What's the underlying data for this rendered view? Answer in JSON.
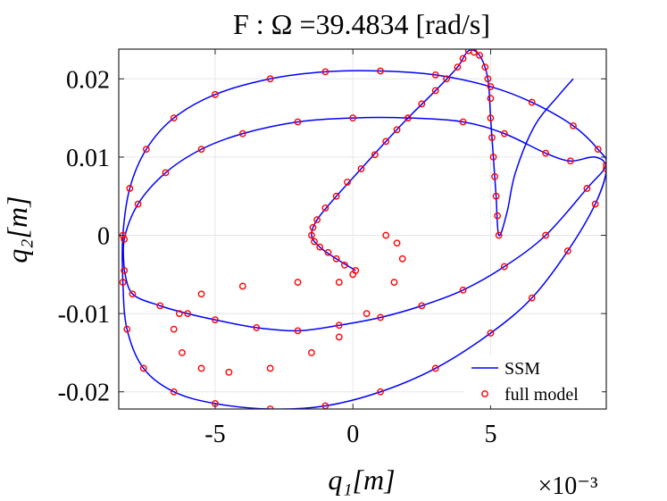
{
  "chart_data": {
    "type": "line",
    "title": "F : Ω =39.4834 [rad/s]",
    "xlabel": "q₁[m]",
    "ylabel": "q₂[m]",
    "x_exponent_label": "×10⁻³",
    "xlim": [
      -8.5,
      9.2
    ],
    "ylim": [
      -0.0222,
      0.0238
    ],
    "x_ticks": [
      -5,
      0,
      5
    ],
    "x_tick_labels": [
      "-5",
      "0",
      "5"
    ],
    "y_ticks": [
      -0.02,
      -0.01,
      0,
      0.01,
      0.02
    ],
    "y_tick_labels": [
      "-0.02",
      "-0.01",
      "0",
      "0.01",
      "0.02"
    ],
    "grid": true,
    "legend_position": "bottom-right",
    "series": [
      {
        "name": "SSM",
        "style": "solid-line",
        "color": "#0000ff",
        "points": [
          [
            -8.3,
            -0.0045
          ],
          [
            -8.0,
            -0.0075
          ],
          [
            -7.0,
            -0.009
          ],
          [
            -6.0,
            -0.01
          ],
          [
            -5.0,
            -0.0108
          ],
          [
            -3.5,
            -0.0118
          ],
          [
            -2.0,
            -0.0122
          ],
          [
            -0.5,
            -0.0115
          ],
          [
            1.0,
            -0.0105
          ],
          [
            2.5,
            -0.009
          ],
          [
            4.0,
            -0.007
          ],
          [
            5.5,
            -0.004
          ],
          [
            7.0,
            0.0
          ],
          [
            8.5,
            0.006
          ],
          [
            9.2,
            0.009
          ],
          [
            8.9,
            0.011
          ],
          [
            8.0,
            0.014
          ],
          [
            6.5,
            0.017
          ],
          [
            5.0,
            0.019
          ],
          [
            3.0,
            0.0205
          ],
          [
            1.0,
            0.021
          ],
          [
            -1.0,
            0.0209
          ],
          [
            -3.0,
            0.02
          ],
          [
            -5.0,
            0.018
          ],
          [
            -6.5,
            0.015
          ],
          [
            -7.5,
            0.011
          ],
          [
            -8.1,
            0.006
          ],
          [
            -8.35,
            0.0
          ],
          [
            -8.35,
            -0.006
          ],
          [
            -8.2,
            -0.012
          ],
          [
            -7.6,
            -0.017
          ],
          [
            -6.5,
            -0.02
          ],
          [
            -5.0,
            -0.0215
          ],
          [
            -3.0,
            -0.0222
          ],
          [
            -1.0,
            -0.0218
          ],
          [
            1.0,
            -0.02
          ],
          [
            3.0,
            -0.017
          ],
          [
            5.0,
            -0.0125
          ],
          [
            6.5,
            -0.008
          ],
          [
            7.8,
            -0.002
          ],
          [
            8.8,
            0.004
          ],
          [
            9.2,
            0.0085
          ],
          [
            8.8,
            0.01
          ],
          [
            7.9,
            0.0095
          ],
          [
            7.0,
            0.0105
          ],
          [
            5.5,
            0.013
          ],
          [
            4.0,
            0.0145
          ],
          [
            2.0,
            0.015
          ],
          [
            0.0,
            0.015
          ],
          [
            -2.0,
            0.0145
          ],
          [
            -4.0,
            0.013
          ],
          [
            -5.5,
            0.011
          ],
          [
            -6.8,
            0.008
          ],
          [
            -7.8,
            0.004
          ],
          [
            -8.3,
            -0.0005
          ],
          [
            -8.3,
            -0.0045
          ]
        ]
      },
      {
        "name": "",
        "style": "solid-line",
        "color": "#0000ff",
        "points": [
          [
            0.1,
            -0.0045
          ],
          [
            -0.6,
            -0.003
          ],
          [
            -1.2,
            -0.0015
          ],
          [
            -1.5,
            0.0
          ],
          [
            -1.3,
            0.002
          ],
          [
            -0.6,
            0.005
          ],
          [
            0.3,
            0.0085
          ],
          [
            1.2,
            0.012
          ],
          [
            2.0,
            0.015
          ],
          [
            3.0,
            0.0185
          ],
          [
            3.8,
            0.0215
          ],
          [
            4.2,
            0.0236
          ],
          [
            4.6,
            0.023
          ],
          [
            4.9,
            0.02
          ],
          [
            5.0,
            0.015
          ],
          [
            5.1,
            0.01
          ],
          [
            5.2,
            0.005
          ],
          [
            5.3,
            0.0
          ],
          [
            5.6,
            0.003
          ],
          [
            5.9,
            0.008
          ],
          [
            6.6,
            0.014
          ],
          [
            7.5,
            0.018
          ],
          [
            8.0,
            0.02
          ]
        ]
      },
      {
        "name": "full model",
        "style": "open-circles",
        "color": "#ff0000",
        "points": [
          [
            0.1,
            -0.0045
          ],
          [
            -0.3,
            -0.0038
          ],
          [
            -0.6,
            -0.003
          ],
          [
            -0.9,
            -0.0022
          ],
          [
            -1.2,
            -0.0015
          ],
          [
            -1.4,
            -0.0008
          ],
          [
            -1.5,
            0.0
          ],
          [
            -1.45,
            0.001
          ],
          [
            -1.3,
            0.002
          ],
          [
            -1.0,
            0.0035
          ],
          [
            -0.6,
            0.005
          ],
          [
            -0.2,
            0.0068
          ],
          [
            0.3,
            0.0085
          ],
          [
            0.8,
            0.0103
          ],
          [
            1.2,
            0.012
          ],
          [
            1.6,
            0.0135
          ],
          [
            2.0,
            0.015
          ],
          [
            2.5,
            0.0168
          ],
          [
            3.0,
            0.0185
          ],
          [
            3.4,
            0.02
          ],
          [
            3.8,
            0.0215
          ],
          [
            4.0,
            0.0226
          ],
          [
            4.2,
            0.0236
          ],
          [
            4.4,
            0.0234
          ],
          [
            4.6,
            0.023
          ],
          [
            4.8,
            0.0215
          ],
          [
            4.9,
            0.02
          ],
          [
            5.0,
            0.0175
          ],
          [
            5.0,
            0.015
          ],
          [
            5.05,
            0.0125
          ],
          [
            5.1,
            0.01
          ],
          [
            5.15,
            0.0075
          ],
          [
            5.2,
            0.005
          ],
          [
            5.25,
            0.0025
          ],
          [
            5.3,
            0.0
          ],
          [
            1.2,
            0.0
          ],
          [
            1.6,
            -0.001
          ],
          [
            1.8,
            -0.003
          ],
          [
            1.5,
            -0.006
          ],
          [
            0.5,
            -0.01
          ],
          [
            -0.5,
            -0.013
          ],
          [
            -1.5,
            -0.015
          ],
          [
            -3.0,
            -0.017
          ],
          [
            -4.5,
            -0.0175
          ],
          [
            -5.5,
            -0.017
          ],
          [
            -6.2,
            -0.015
          ],
          [
            -6.5,
            -0.012
          ],
          [
            -6.3,
            -0.01
          ],
          [
            -5.5,
            -0.0075
          ],
          [
            -4.0,
            -0.0065
          ],
          [
            -2.0,
            -0.006
          ],
          [
            -0.5,
            -0.006
          ],
          [
            0.0,
            -0.005
          ],
          [
            -8.3,
            -0.0045
          ],
          [
            -8.0,
            -0.0075
          ],
          [
            -7.0,
            -0.009
          ],
          [
            -6.0,
            -0.01
          ],
          [
            -5.0,
            -0.0108
          ],
          [
            -3.5,
            -0.0118
          ],
          [
            -2.0,
            -0.0122
          ],
          [
            -0.5,
            -0.0115
          ],
          [
            1.0,
            -0.0105
          ],
          [
            2.5,
            -0.009
          ],
          [
            4.0,
            -0.007
          ],
          [
            5.5,
            -0.004
          ],
          [
            7.0,
            0.0
          ],
          [
            8.5,
            0.006
          ],
          [
            9.2,
            0.009
          ],
          [
            8.9,
            0.011
          ],
          [
            8.0,
            0.014
          ],
          [
            6.5,
            0.017
          ],
          [
            5.0,
            0.019
          ],
          [
            3.0,
            0.0205
          ],
          [
            1.0,
            0.021
          ],
          [
            -1.0,
            0.0209
          ],
          [
            -3.0,
            0.02
          ],
          [
            -5.0,
            0.018
          ],
          [
            -6.5,
            0.015
          ],
          [
            -7.5,
            0.011
          ],
          [
            -8.1,
            0.006
          ],
          [
            -8.35,
            0.0
          ],
          [
            -8.35,
            -0.006
          ],
          [
            -8.2,
            -0.012
          ],
          [
            -7.6,
            -0.017
          ],
          [
            -6.5,
            -0.02
          ],
          [
            -5.0,
            -0.0215
          ],
          [
            -3.0,
            -0.0222
          ],
          [
            -1.0,
            -0.0218
          ],
          [
            1.0,
            -0.02
          ],
          [
            3.0,
            -0.017
          ],
          [
            5.0,
            -0.0125
          ],
          [
            6.5,
            -0.008
          ],
          [
            7.8,
            -0.002
          ],
          [
            8.8,
            0.004
          ],
          [
            9.2,
            0.0085
          ],
          [
            7.9,
            0.0095
          ],
          [
            7.0,
            0.0105
          ],
          [
            5.5,
            0.013
          ],
          [
            4.0,
            0.0145
          ],
          [
            2.0,
            0.015
          ],
          [
            0.0,
            0.015
          ],
          [
            -2.0,
            0.0145
          ],
          [
            -4.0,
            0.013
          ],
          [
            -5.5,
            0.011
          ],
          [
            -6.8,
            0.008
          ],
          [
            -7.8,
            0.004
          ],
          [
            -8.3,
            -0.0005
          ]
        ]
      }
    ]
  },
  "colors": {
    "ssm_line": "#0000ff",
    "full_model_marker": "#ff0000",
    "grid": "#e6e6e6",
    "axes": "#262626"
  }
}
